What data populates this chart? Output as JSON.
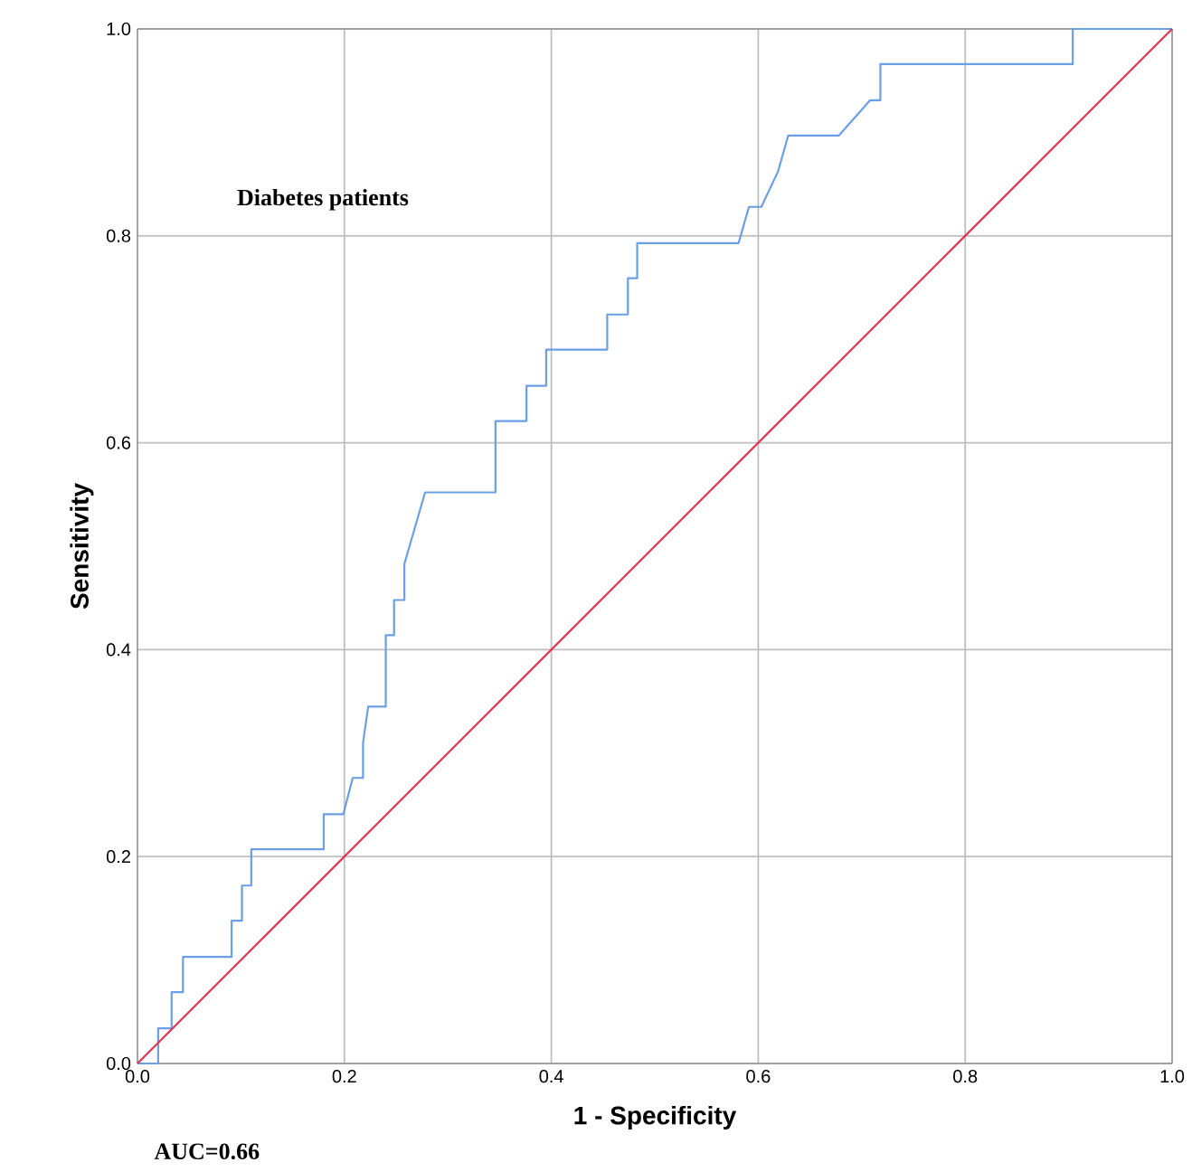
{
  "chart_data": {
    "type": "line",
    "xlabel": "1 - Specificity",
    "ylabel": "Sensitivity",
    "annotations": [
      "Diabetes patients",
      "AUC=0.66"
    ],
    "series": [
      {
        "color": "#6a9fe6",
        "x": [
          0,
          0.02,
          0.02,
          0.033,
          0.033,
          0.044,
          0.044,
          0.091,
          0.091,
          0.101,
          0.101,
          0.11,
          0.11,
          0.18,
          0.18,
          0.199,
          0.208,
          0.218,
          0.218,
          0.223,
          0.24,
          0.24,
          0.248,
          0.248,
          0.258,
          0.258,
          0.278,
          0.346,
          0.346,
          0.376,
          0.376,
          0.395,
          0.395,
          0.454,
          0.454,
          0.474,
          0.474,
          0.483,
          0.483,
          0.581,
          0.591,
          0.603,
          0.619,
          0.629,
          0.678,
          0.708,
          0.718,
          0.718,
          0.904,
          0.904,
          1.0
        ],
        "values": [
          0,
          0,
          0.034,
          0.034,
          0.069,
          0.069,
          0.103,
          0.103,
          0.138,
          0.138,
          0.172,
          0.172,
          0.207,
          0.207,
          0.241,
          0.241,
          0.276,
          0.276,
          0.31,
          0.345,
          0.345,
          0.414,
          0.414,
          0.448,
          0.448,
          0.483,
          0.552,
          0.552,
          0.621,
          0.621,
          0.655,
          0.655,
          0.69,
          0.69,
          0.724,
          0.724,
          0.759,
          0.759,
          0.793,
          0.793,
          0.828,
          0.828,
          0.862,
          0.897,
          0.897,
          0.931,
          0.931,
          0.966,
          0.966,
          1.0,
          1.0
        ]
      },
      {
        "color": "#e8304e",
        "x": [
          0,
          1
        ],
        "values": [
          0,
          1
        ]
      }
    ],
    "xlim": [
      0,
      1
    ],
    "ylim": [
      0,
      1
    ],
    "xticks": [
      {
        "value": 0,
        "label": "0.0"
      },
      {
        "value": 0.2,
        "label": "0.2"
      },
      {
        "value": 0.4,
        "label": "0.4"
      },
      {
        "value": 0.6,
        "label": "0.6"
      },
      {
        "value": 0.8,
        "label": "0.8"
      },
      {
        "value": 1,
        "label": "1.0"
      }
    ],
    "yticks": [
      {
        "value": 0,
        "label": "0.0"
      },
      {
        "value": 0.2,
        "label": "0.2"
      },
      {
        "value": 0.4,
        "label": "0.4"
      },
      {
        "value": 0.6,
        "label": "0.6"
      },
      {
        "value": 0.8,
        "label": "0.8"
      },
      {
        "value": 1,
        "label": "1.0"
      }
    ],
    "grid": true,
    "marker": "none",
    "line_style": "solid"
  }
}
